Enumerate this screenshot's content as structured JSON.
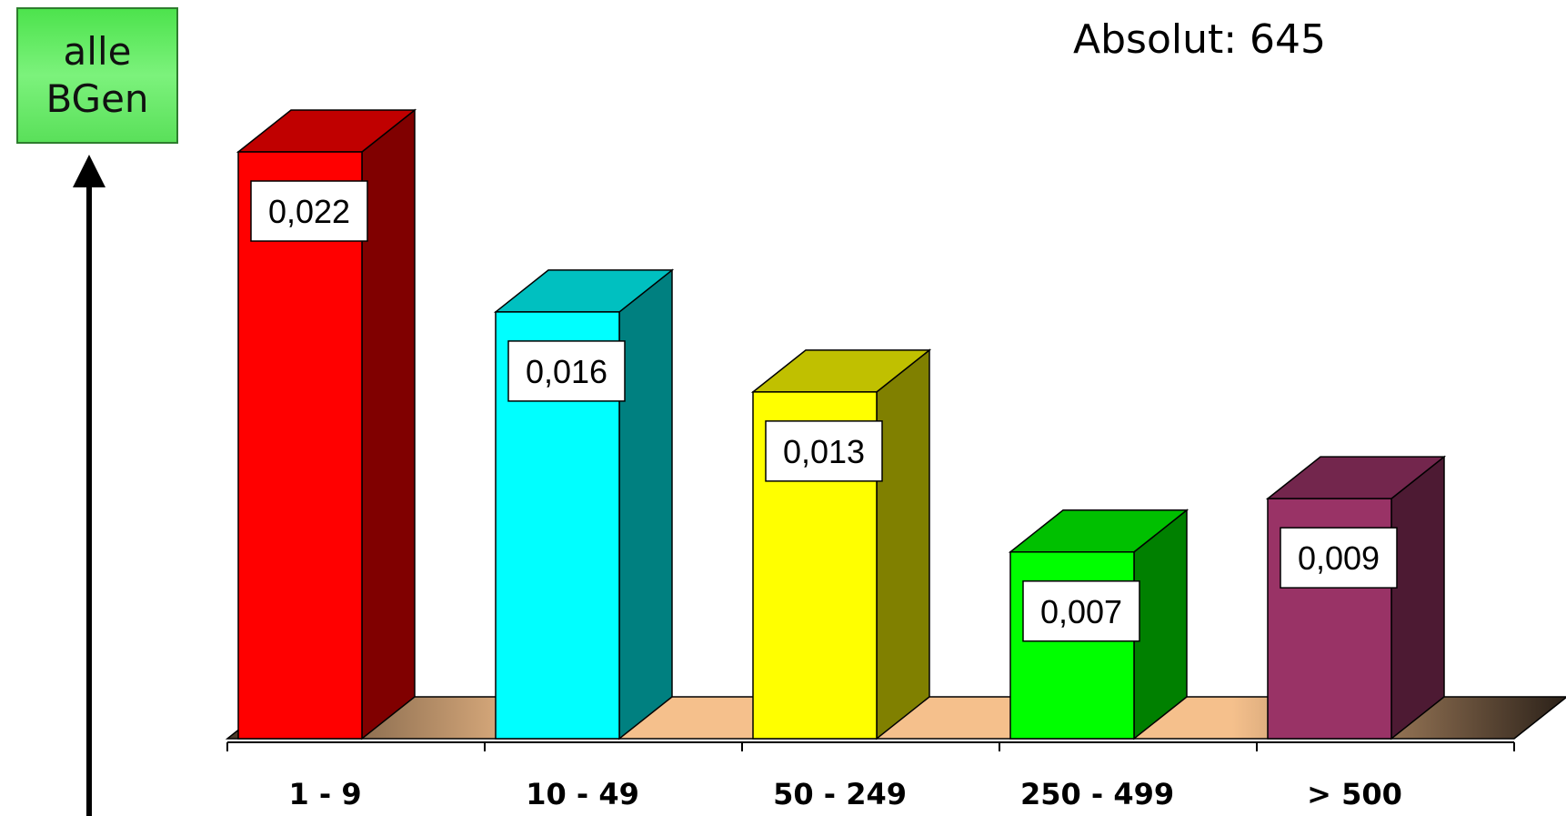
{
  "legend": {
    "line1": "alle",
    "line2": "BGen"
  },
  "absolute_text": "Absolut: 645",
  "chart_data": {
    "type": "bar",
    "categories": [
      "1 - 9",
      "10 - 49",
      "50 - 249",
      "250 - 499",
      "> 500"
    ],
    "values": [
      0.022,
      0.016,
      0.013,
      0.007,
      0.009
    ],
    "data_labels": [
      "0,022",
      "0,016",
      "0,013",
      "0,007",
      "0,009"
    ],
    "colors": [
      "#ff0000",
      "#00ffff",
      "#ffff00",
      "#00ff00",
      "#993366"
    ],
    "side_colors": [
      "#800000",
      "#008080",
      "#808000",
      "#008000",
      "#4d1a33"
    ],
    "top_colors": [
      "#c00000",
      "#00c0c0",
      "#c0c000",
      "#00c000",
      "#73264d"
    ],
    "floor_color": "#f5c08c",
    "ylim": [
      0,
      0.022
    ],
    "grid": false,
    "style": "3d"
  }
}
